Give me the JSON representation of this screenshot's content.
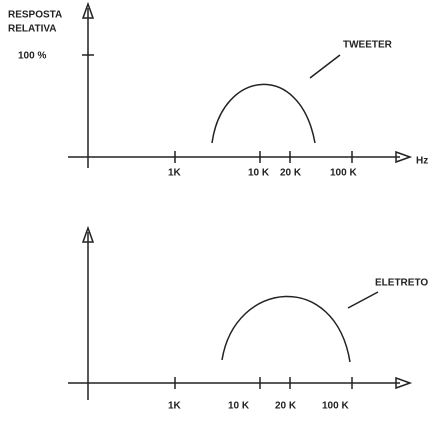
{
  "top": {
    "y_label": [
      "RESPOSTA",
      "RELATIVA"
    ],
    "y_tick": "100 %",
    "x_unit": "Hz",
    "x_ticks": [
      "1K",
      "10 K",
      "20 K",
      "100 K"
    ],
    "curve_label": "TWEETER"
  },
  "bottom": {
    "x_ticks": [
      "1K",
      "10 K",
      "20 K",
      "100 K"
    ],
    "curve_label": "ELETRETO"
  }
}
